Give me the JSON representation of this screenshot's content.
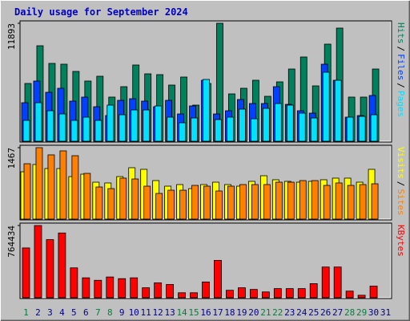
{
  "chart_data": [
    {
      "type": "bar",
      "title": "Daily usage for September 2024",
      "ylim": [
        0,
        11893
      ],
      "yticks": [
        11893
      ],
      "legend_separator": "/",
      "series": [
        {
          "name": "Hits",
          "color": "#00805c",
          "values": [
            5825,
            9627,
            7847,
            7767,
            7038,
            6068,
            6553,
            4450,
            5501,
            7686,
            6796,
            6715,
            5663,
            6472,
            3641,
            5825,
            11893,
            4773,
            5340,
            6149,
            4531,
            5987,
            7281,
            8495,
            5582,
            9789,
            11407,
            4450,
            4450,
            7281,
            null
          ]
        },
        {
          "name": "Files",
          "color": "#0040ff",
          "values": [
            3883,
            6068,
            4935,
            5339,
            4045,
            4450,
            3479,
            2589,
            4126,
            4288,
            4045,
            3479,
            4126,
            2751,
            3560,
            6148,
            2751,
            3074,
            4207,
            3802,
            3802,
            5501,
            3721,
            3074,
            2832,
            7766,
            6148,
            2427,
            2589,
            4611,
            null
          ]
        },
        {
          "name": "Pages",
          "color": "#00e0ff",
          "values": [
            2103,
            3883,
            3074,
            2751,
            2103,
            2427,
            2103,
            3641,
            2670,
            3155,
            3155,
            3560,
            2427,
            1861,
            2346,
            6229,
            2184,
            2427,
            3236,
            2265,
            3317,
            3802,
            3641,
            2832,
            2346,
            6957,
            6148,
            2427,
            2508,
            2670,
            null
          ]
        }
      ]
    },
    {
      "type": "bar",
      "ylim": [
        0,
        1467
      ],
      "yticks": [
        1467
      ],
      "legend_separator": "/",
      "series": [
        {
          "name": "Visits",
          "color": "#ffff00",
          "values": [
            972,
            1121,
            1038,
            1038,
            873,
            923,
            758,
            742,
            873,
            1055,
            1022,
            791,
            676,
            709,
            626,
            709,
            758,
            709,
            676,
            775,
            890,
            808,
            775,
            758,
            775,
            808,
            841,
            841,
            758,
            1022,
            null
          ]
        },
        {
          "name": "Sites",
          "color": "#ff8000",
          "values": [
            1137,
            1467,
            1319,
            1401,
            1302,
            939,
            659,
            626,
            841,
            824,
            676,
            527,
            593,
            593,
            692,
            676,
            577,
            676,
            709,
            709,
            709,
            758,
            758,
            791,
            791,
            692,
            742,
            692,
            709,
            725,
            null
          ]
        }
      ]
    },
    {
      "type": "bar",
      "ylim": [
        0,
        764434
      ],
      "yticks": [
        764434
      ],
      "categories": [
        "1",
        "2",
        "3",
        "4",
        "5",
        "6",
        "7",
        "8",
        "9",
        "10",
        "11",
        "12",
        "13",
        "14",
        "15",
        "16",
        "17",
        "18",
        "19",
        "20",
        "21",
        "22",
        "23",
        "24",
        "25",
        "26",
        "27",
        "28",
        "29",
        "30",
        "31"
      ],
      "category_colors": [
        "#008040",
        "#00008b",
        "#00008b",
        "#00008b",
        "#00008b",
        "#00008b",
        "#008040",
        "#008040",
        "#00008b",
        "#00008b",
        "#00008b",
        "#00008b",
        "#00008b",
        "#008040",
        "#008040",
        "#00008b",
        "#00008b",
        "#00008b",
        "#00008b",
        "#00008b",
        "#008040",
        "#008040",
        "#00008b",
        "#00008b",
        "#00008b",
        "#00008b",
        "#00008b",
        "#008040",
        "#008040",
        "#00008b",
        "#00008b"
      ],
      "series": [
        {
          "name": "KBytes",
          "color": "#ff0000",
          "values": [
            527196,
            764434,
            615062,
            685355,
            316318,
            210878,
            184519,
            219665,
            202092,
            210878,
            105439,
            158159,
            140586,
            52720,
            52720,
            166945,
            395397,
            79079,
            105439,
            87866,
            61506,
            96653,
            96653,
            96653,
            149372,
            325104,
            325104,
            70293,
            26360,
            123012,
            null
          ]
        }
      ]
    }
  ]
}
